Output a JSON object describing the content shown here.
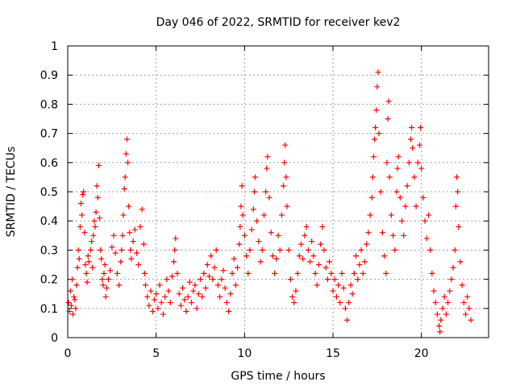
{
  "chart_data": {
    "type": "scatter",
    "title": "Day 046 of 2022, SRMTID for receiver kev2",
    "xlabel": "GPS time / hours",
    "ylabel": "SRMTID / TECUs",
    "xlim": [
      0,
      23.8
    ],
    "ylim": [
      0,
      1
    ],
    "xticks": [
      0,
      5,
      10,
      15,
      20
    ],
    "yticks": [
      0,
      0.1,
      0.2,
      0.3,
      0.4,
      0.5,
      0.6,
      0.7,
      0.8,
      0.9,
      1
    ],
    "ytick_labels": [
      "0",
      "0.1",
      "0.2",
      "0.3",
      "0.4",
      "0.5",
      "0.6",
      "0.7",
      "0.8",
      "0.9",
      "1"
    ],
    "grid": true,
    "marker": "+",
    "color": "#ff0000",
    "series": [
      {
        "name": "SRMTID",
        "points": [
          [
            0.05,
            0.12
          ],
          [
            0.1,
            0.09
          ],
          [
            0.15,
            0.16
          ],
          [
            0.2,
            0.11
          ],
          [
            0.25,
            0.2
          ],
          [
            0.3,
            0.08
          ],
          [
            0.35,
            0.14
          ],
          [
            0.4,
            0.13
          ],
          [
            0.45,
            0.1
          ],
          [
            0.5,
            0.18
          ],
          [
            0.55,
            0.24
          ],
          [
            0.6,
            0.3
          ],
          [
            0.65,
            0.27
          ],
          [
            0.7,
            0.38
          ],
          [
            0.75,
            0.46
          ],
          [
            0.8,
            0.42
          ],
          [
            0.85,
            0.49
          ],
          [
            0.9,
            0.5
          ],
          [
            0.95,
            0.36
          ],
          [
            1.0,
            0.25
          ],
          [
            1.05,
            0.22
          ],
          [
            1.1,
            0.19
          ],
          [
            1.15,
            0.28
          ],
          [
            1.2,
            0.26
          ],
          [
            1.3,
            0.3
          ],
          [
            1.35,
            0.33
          ],
          [
            1.4,
            0.24
          ],
          [
            1.45,
            0.35
          ],
          [
            1.5,
            0.4
          ],
          [
            1.55,
            0.38
          ],
          [
            1.6,
            0.43
          ],
          [
            1.65,
            0.52
          ],
          [
            1.7,
            0.48
          ],
          [
            1.75,
            0.59
          ],
          [
            1.8,
            0.41
          ],
          [
            1.85,
            0.3
          ],
          [
            1.9,
            0.27
          ],
          [
            1.95,
            0.2
          ],
          [
            2.0,
            0.18
          ],
          [
            2.05,
            0.22
          ],
          [
            2.1,
            0.25
          ],
          [
            2.15,
            0.14
          ],
          [
            2.2,
            0.17
          ],
          [
            2.3,
            0.2
          ],
          [
            2.4,
            0.23
          ],
          [
            2.5,
            0.31
          ],
          [
            2.6,
            0.35
          ],
          [
            2.7,
            0.29
          ],
          [
            2.8,
            0.22
          ],
          [
            2.9,
            0.18
          ],
          [
            3.0,
            0.26
          ],
          [
            3.05,
            0.3
          ],
          [
            3.1,
            0.35
          ],
          [
            3.15,
            0.42
          ],
          [
            3.2,
            0.51
          ],
          [
            3.25,
            0.55
          ],
          [
            3.3,
            0.63
          ],
          [
            3.35,
            0.68
          ],
          [
            3.4,
            0.6
          ],
          [
            3.45,
            0.45
          ],
          [
            3.5,
            0.36
          ],
          [
            3.55,
            0.3
          ],
          [
            3.6,
            0.27
          ],
          [
            3.7,
            0.33
          ],
          [
            3.8,
            0.37
          ],
          [
            3.9,
            0.29
          ],
          [
            4.0,
            0.25
          ],
          [
            4.1,
            0.38
          ],
          [
            4.2,
            0.44
          ],
          [
            4.3,
            0.32
          ],
          [
            4.35,
            0.22
          ],
          [
            4.4,
            0.18
          ],
          [
            4.5,
            0.14
          ],
          [
            4.6,
            0.11
          ],
          [
            4.7,
            0.16
          ],
          [
            4.8,
            0.09
          ],
          [
            4.9,
            0.13
          ],
          [
            5.0,
            0.15
          ],
          [
            5.1,
            0.1
          ],
          [
            5.2,
            0.18
          ],
          [
            5.3,
            0.12
          ],
          [
            5.4,
            0.08
          ],
          [
            5.5,
            0.14
          ],
          [
            5.6,
            0.2
          ],
          [
            5.7,
            0.16
          ],
          [
            5.8,
            0.12
          ],
          [
            5.9,
            0.21
          ],
          [
            6.0,
            0.26
          ],
          [
            6.05,
            0.3
          ],
          [
            6.1,
            0.34
          ],
          [
            6.2,
            0.22
          ],
          [
            6.3,
            0.15
          ],
          [
            6.4,
            0.11
          ],
          [
            6.5,
            0.17
          ],
          [
            6.6,
            0.13
          ],
          [
            6.7,
            0.09
          ],
          [
            6.8,
            0.14
          ],
          [
            6.9,
            0.19
          ],
          [
            7.0,
            0.12
          ],
          [
            7.1,
            0.16
          ],
          [
            7.2,
            0.18
          ],
          [
            7.3,
            0.1
          ],
          [
            7.4,
            0.15
          ],
          [
            7.5,
            0.2
          ],
          [
            7.6,
            0.14
          ],
          [
            7.7,
            0.22
          ],
          [
            7.8,
            0.17
          ],
          [
            7.9,
            0.25
          ],
          [
            8.0,
            0.21
          ],
          [
            8.1,
            0.28
          ],
          [
            8.2,
            0.2
          ],
          [
            8.3,
            0.24
          ],
          [
            8.4,
            0.3
          ],
          [
            8.5,
            0.18
          ],
          [
            8.6,
            0.14
          ],
          [
            8.7,
            0.2
          ],
          [
            8.8,
            0.23
          ],
          [
            8.9,
            0.17
          ],
          [
            9.0,
            0.12
          ],
          [
            9.1,
            0.09
          ],
          [
            9.2,
            0.15
          ],
          [
            9.3,
            0.22
          ],
          [
            9.4,
            0.27
          ],
          [
            9.5,
            0.18
          ],
          [
            9.6,
            0.24
          ],
          [
            9.7,
            0.32
          ],
          [
            9.75,
            0.38
          ],
          [
            9.8,
            0.45
          ],
          [
            9.85,
            0.52
          ],
          [
            9.9,
            0.42
          ],
          [
            10.0,
            0.35
          ],
          [
            10.1,
            0.28
          ],
          [
            10.2,
            0.22
          ],
          [
            10.3,
            0.3
          ],
          [
            10.4,
            0.37
          ],
          [
            10.5,
            0.44
          ],
          [
            10.55,
            0.5
          ],
          [
            10.6,
            0.55
          ],
          [
            10.7,
            0.4
          ],
          [
            10.8,
            0.33
          ],
          [
            10.9,
            0.26
          ],
          [
            11.0,
            0.3
          ],
          [
            11.1,
            0.42
          ],
          [
            11.2,
            0.5
          ],
          [
            11.25,
            0.58
          ],
          [
            11.3,
            0.62
          ],
          [
            11.4,
            0.48
          ],
          [
            11.5,
            0.36
          ],
          [
            11.6,
            0.28
          ],
          [
            11.7,
            0.22
          ],
          [
            11.8,
            0.27
          ],
          [
            11.9,
            0.35
          ],
          [
            12.0,
            0.3
          ],
          [
            12.1,
            0.42
          ],
          [
            12.2,
            0.52
          ],
          [
            12.25,
            0.6
          ],
          [
            12.3,
            0.66
          ],
          [
            12.35,
            0.55
          ],
          [
            12.4,
            0.45
          ],
          [
            12.5,
            0.3
          ],
          [
            12.6,
            0.2
          ],
          [
            12.7,
            0.14
          ],
          [
            12.8,
            0.12
          ],
          [
            12.9,
            0.16
          ],
          [
            13.0,
            0.22
          ],
          [
            13.1,
            0.28
          ],
          [
            13.2,
            0.32
          ],
          [
            13.3,
            0.27
          ],
          [
            13.4,
            0.35
          ],
          [
            13.5,
            0.38
          ],
          [
            13.6,
            0.3
          ],
          [
            13.7,
            0.26
          ],
          [
            13.8,
            0.33
          ],
          [
            13.9,
            0.28
          ],
          [
            14.0,
            0.22
          ],
          [
            14.1,
            0.18
          ],
          [
            14.2,
            0.25
          ],
          [
            14.3,
            0.32
          ],
          [
            14.4,
            0.38
          ],
          [
            14.5,
            0.3
          ],
          [
            14.6,
            0.24
          ],
          [
            14.7,
            0.2
          ],
          [
            14.8,
            0.26
          ],
          [
            14.9,
            0.22
          ],
          [
            15.0,
            0.16
          ],
          [
            15.1,
            0.2
          ],
          [
            15.2,
            0.14
          ],
          [
            15.3,
            0.18
          ],
          [
            15.4,
            0.12
          ],
          [
            15.5,
            0.22
          ],
          [
            15.6,
            0.17
          ],
          [
            15.7,
            0.1
          ],
          [
            15.8,
            0.06
          ],
          [
            15.9,
            0.12
          ],
          [
            16.0,
            0.18
          ],
          [
            16.1,
            0.15
          ],
          [
            16.2,
            0.22
          ],
          [
            16.3,
            0.28
          ],
          [
            16.4,
            0.2
          ],
          [
            16.5,
            0.25
          ],
          [
            16.6,
            0.3
          ],
          [
            16.7,
            0.22
          ],
          [
            16.8,
            0.26
          ],
          [
            16.9,
            0.32
          ],
          [
            17.0,
            0.36
          ],
          [
            17.1,
            0.42
          ],
          [
            17.2,
            0.48
          ],
          [
            17.25,
            0.55
          ],
          [
            17.3,
            0.62
          ],
          [
            17.35,
            0.68
          ],
          [
            17.4,
            0.72
          ],
          [
            17.45,
            0.78
          ],
          [
            17.5,
            0.86
          ],
          [
            17.55,
            0.91
          ],
          [
            17.6,
            0.7
          ],
          [
            17.7,
            0.5
          ],
          [
            17.8,
            0.36
          ],
          [
            17.9,
            0.28
          ],
          [
            18.0,
            0.22
          ],
          [
            18.05,
            0.6
          ],
          [
            18.1,
            0.75
          ],
          [
            18.15,
            0.81
          ],
          [
            18.2,
            0.55
          ],
          [
            18.3,
            0.42
          ],
          [
            18.4,
            0.35
          ],
          [
            18.5,
            0.3
          ],
          [
            18.6,
            0.5
          ],
          [
            18.65,
            0.58
          ],
          [
            18.7,
            0.62
          ],
          [
            18.8,
            0.48
          ],
          [
            18.9,
            0.4
          ],
          [
            19.0,
            0.35
          ],
          [
            19.1,
            0.45
          ],
          [
            19.2,
            0.52
          ],
          [
            19.3,
            0.6
          ],
          [
            19.4,
            0.68
          ],
          [
            19.45,
            0.72
          ],
          [
            19.5,
            0.65
          ],
          [
            19.6,
            0.55
          ],
          [
            19.7,
            0.45
          ],
          [
            19.8,
            0.6
          ],
          [
            19.9,
            0.66
          ],
          [
            19.95,
            0.72
          ],
          [
            20.0,
            0.58
          ],
          [
            20.1,
            0.48
          ],
          [
            20.2,
            0.4
          ],
          [
            20.3,
            0.34
          ],
          [
            20.4,
            0.42
          ],
          [
            20.5,
            0.3
          ],
          [
            20.6,
            0.22
          ],
          [
            20.7,
            0.16
          ],
          [
            20.8,
            0.12
          ],
          [
            20.9,
            0.08
          ],
          [
            21.0,
            0.04
          ],
          [
            21.05,
            0.02
          ],
          [
            21.1,
            0.06
          ],
          [
            21.2,
            0.1
          ],
          [
            21.3,
            0.14
          ],
          [
            21.4,
            0.08
          ],
          [
            21.5,
            0.12
          ],
          [
            21.6,
            0.16
          ],
          [
            21.7,
            0.2
          ],
          [
            21.8,
            0.24
          ],
          [
            21.9,
            0.3
          ],
          [
            21.95,
            0.45
          ],
          [
            22.0,
            0.55
          ],
          [
            22.05,
            0.5
          ],
          [
            22.1,
            0.38
          ],
          [
            22.2,
            0.26
          ],
          [
            22.3,
            0.18
          ],
          [
            22.4,
            0.12
          ],
          [
            22.5,
            0.08
          ],
          [
            22.6,
            0.14
          ],
          [
            22.7,
            0.1
          ],
          [
            22.8,
            0.06
          ]
        ]
      }
    ]
  }
}
